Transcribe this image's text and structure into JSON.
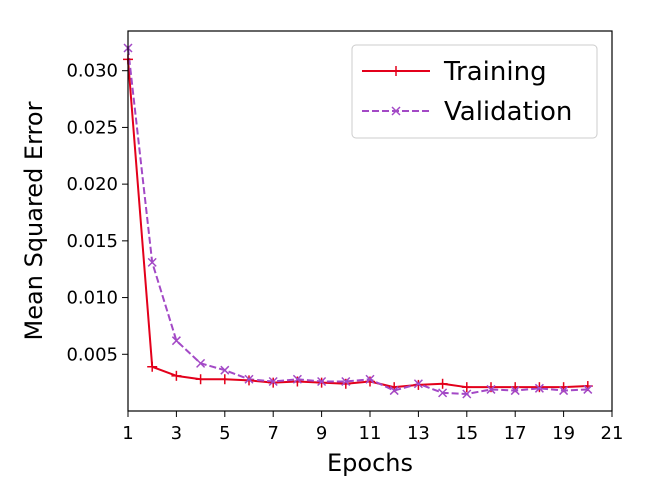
{
  "chart_data": {
    "type": "line",
    "title": "",
    "xlabel": "Epochs",
    "ylabel": "Mean Squared Error",
    "xlim": [
      1,
      21
    ],
    "ylim": [
      0.0,
      0.0335
    ],
    "x_ticks": [
      1,
      3,
      5,
      7,
      9,
      11,
      13,
      15,
      17,
      19,
      21
    ],
    "x_tick_labels": [
      "1",
      "3",
      "5",
      "7",
      "9",
      "11",
      "13",
      "15",
      "17",
      "19",
      "21"
    ],
    "y_ticks": [
      0.005,
      0.01,
      0.015,
      0.02,
      0.025,
      0.03
    ],
    "y_tick_labels": [
      "0.005",
      "0.010",
      "0.015",
      "0.020",
      "0.025",
      "0.030"
    ],
    "grid": false,
    "legend_position": "top-right",
    "x": [
      1,
      2,
      3,
      4,
      5,
      6,
      7,
      8,
      9,
      10,
      11,
      12,
      13,
      14,
      15,
      16,
      17,
      18,
      19,
      20
    ],
    "series": [
      {
        "name": "Training",
        "color": "#e3001b",
        "line_style": "solid",
        "marker": "plus",
        "values": [
          0.031,
          0.0039,
          0.0031,
          0.0028,
          0.0028,
          0.0027,
          0.0025,
          0.0026,
          0.0025,
          0.0024,
          0.0026,
          0.0021,
          0.0023,
          0.0024,
          0.0021,
          0.0021,
          0.0021,
          0.0021,
          0.0021,
          0.0022
        ]
      },
      {
        "name": "Validation",
        "color": "#a349c6",
        "line_style": "dashed",
        "marker": "x",
        "values": [
          0.032,
          0.0131,
          0.0062,
          0.0042,
          0.0036,
          0.0028,
          0.0026,
          0.0028,
          0.0026,
          0.0026,
          0.0028,
          0.0018,
          0.0024,
          0.0016,
          0.0015,
          0.0019,
          0.0018,
          0.002,
          0.0018,
          0.0019
        ]
      }
    ]
  }
}
